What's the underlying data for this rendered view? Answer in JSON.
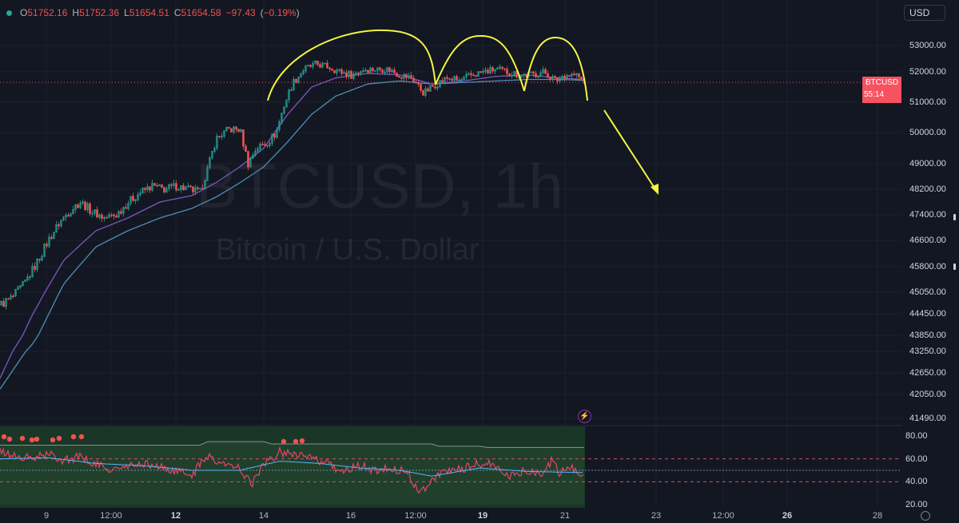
{
  "header": {
    "open_label": "O",
    "open": "51752.16",
    "high_label": "H",
    "high": "51752.36",
    "low_label": "L",
    "low": "51654.51",
    "close_label": "C",
    "close": "51654.58",
    "change": "−97.43",
    "change_pct": "−0.19%",
    "currency": "USD"
  },
  "watermark": {
    "title": "BTCUSD, 1h",
    "subtitle": "Bitcoin / U.S. Dollar"
  },
  "price_tag": {
    "symbol": "BTCUSD",
    "price": "51654.58",
    "countdown": "55:14"
  },
  "colors": {
    "background": "#131722",
    "up": "#26a69a",
    "down": "#ef5350",
    "ema_fast": "#7e57c2",
    "ema_slow": "#4a90b8",
    "annotation": "#f5f542",
    "rsi_fill": "#1f4d2e",
    "rsi_ma": "#5ab4ff"
  },
  "icons": {
    "alert": "lightning-icon",
    "settings": "gear-icon"
  },
  "chart_data": [
    {
      "type": "candlestick",
      "symbol": "BTCUSD",
      "timeframe": "1h",
      "y_ticks": [
        53000,
        52000,
        51000,
        50000,
        49000,
        48200,
        47400,
        46600,
        45800,
        45050,
        44450,
        43850,
        43250,
        42650,
        42050,
        41490
      ],
      "y_tick_labels": [
        "53000.00",
        "52000.00",
        "51000.00",
        "50000.00",
        "49000.00",
        "48200.00",
        "47400.00",
        "46600.00",
        "45800.00",
        "45050.00",
        "44450.00",
        "43850.00",
        "43250.00",
        "42650.00",
        "42050.00",
        "41490.00"
      ],
      "x_tick_labels": [
        "9",
        "12:00",
        "12",
        "14",
        "16",
        "12:00",
        "19",
        "21",
        "23",
        "12:00",
        "26",
        "28"
      ],
      "x_bold_ticks": [
        "12",
        "19",
        "26"
      ],
      "last_price": 51654.58,
      "series": [
        {
          "kind": "price",
          "points": [
            [
              0,
              44700
            ],
            [
              15,
              44900
            ],
            [
              30,
              45300
            ],
            [
              45,
              45900
            ],
            [
              60,
              46600
            ],
            [
              75,
              47200
            ],
            [
              90,
              47600
            ],
            [
              100,
              47800
            ],
            [
              115,
              47500
            ],
            [
              130,
              47300
            ],
            [
              145,
              47400
            ],
            [
              160,
              47800
            ],
            [
              175,
              48100
            ],
            [
              190,
              48300
            ],
            [
              205,
              48200
            ],
            [
              220,
              48300
            ],
            [
              235,
              48200
            ],
            [
              250,
              48100
            ],
            [
              260,
              48900
            ],
            [
              270,
              49800
            ],
            [
              285,
              50100
            ],
            [
              300,
              50100
            ],
            [
              310,
              49000
            ],
            [
              320,
              49500
            ],
            [
              335,
              49700
            ],
            [
              345,
              50000
            ],
            [
              355,
              50900
            ],
            [
              365,
              51600
            ],
            [
              380,
              52100
            ],
            [
              395,
              52300
            ],
            [
              410,
              52200
            ],
            [
              425,
              52000
            ],
            [
              440,
              51900
            ],
            [
              455,
              52100
            ],
            [
              470,
              52100
            ],
            [
              485,
              52100
            ],
            [
              500,
              51900
            ],
            [
              515,
              51800
            ],
            [
              530,
              51300
            ],
            [
              545,
              51600
            ],
            [
              560,
              51800
            ],
            [
              575,
              51700
            ],
            [
              590,
              51900
            ],
            [
              605,
              52000
            ],
            [
              620,
              52100
            ],
            [
              635,
              52000
            ],
            [
              650,
              51900
            ],
            [
              665,
              51900
            ],
            [
              680,
              52000
            ],
            [
              695,
              51700
            ],
            [
              705,
              51900
            ],
            [
              720,
              51900
            ],
            [
              731,
              51655
            ]
          ]
        },
        {
          "kind": "ema_fast",
          "points": [
            [
              0,
              42500
            ],
            [
              40,
              44400
            ],
            [
              80,
              46000
            ],
            [
              120,
              46900
            ],
            [
              160,
              47300
            ],
            [
              200,
              47800
            ],
            [
              240,
              48000
            ],
            [
              270,
              48400
            ],
            [
              300,
              48900
            ],
            [
              330,
              49500
            ],
            [
              360,
              50600
            ],
            [
              390,
              51500
            ],
            [
              420,
              51800
            ],
            [
              460,
              51950
            ],
            [
              500,
              51900
            ],
            [
              540,
              51600
            ],
            [
              580,
              51700
            ],
            [
              620,
              51850
            ],
            [
              660,
              51900
            ],
            [
              700,
              51800
            ],
            [
              731,
              51750
            ]
          ]
        },
        {
          "kind": "ema_slow",
          "points": [
            [
              0,
              42200
            ],
            [
              40,
              43500
            ],
            [
              80,
              45300
            ],
            [
              120,
              46400
            ],
            [
              160,
              46900
            ],
            [
              200,
              47300
            ],
            [
              240,
              47600
            ],
            [
              270,
              47950
            ],
            [
              300,
              48400
            ],
            [
              330,
              48900
            ],
            [
              360,
              49700
            ],
            [
              390,
              50600
            ],
            [
              420,
              51200
            ],
            [
              460,
              51600
            ],
            [
              500,
              51700
            ],
            [
              540,
              51600
            ],
            [
              580,
              51650
            ],
            [
              620,
              51700
            ],
            [
              660,
              51750
            ],
            [
              700,
              51750
            ],
            [
              731,
              51720
            ]
          ]
        }
      ]
    },
    {
      "type": "line",
      "indicator": "RSI",
      "y_ticks": [
        80,
        60,
        40,
        20
      ],
      "y_tick_labels": [
        "80.00",
        "60.00",
        "40.00",
        "20.00"
      ],
      "bands": {
        "upper": 60,
        "middle": 50,
        "lower": 40
      },
      "series": [
        {
          "kind": "rsi",
          "points": [
            [
              0,
              66
            ],
            [
              20,
              62
            ],
            [
              40,
              60
            ],
            [
              60,
              64
            ],
            [
              80,
              59
            ],
            [
              100,
              62
            ],
            [
              120,
              55
            ],
            [
              140,
              50
            ],
            [
              160,
              53
            ],
            [
              180,
              56
            ],
            [
              200,
              53
            ],
            [
              220,
              49
            ],
            [
              240,
              46
            ],
            [
              260,
              63
            ],
            [
              280,
              55
            ],
            [
              300,
              52
            ],
            [
              315,
              38
            ],
            [
              330,
              55
            ],
            [
              350,
              66
            ],
            [
              370,
              65
            ],
            [
              390,
              60
            ],
            [
              410,
              55
            ],
            [
              430,
              49
            ],
            [
              450,
              54
            ],
            [
              470,
              50
            ],
            [
              490,
              52
            ],
            [
              510,
              48
            ],
            [
              525,
              30
            ],
            [
              540,
              42
            ],
            [
              560,
              50
            ],
            [
              580,
              52
            ],
            [
              600,
              56
            ],
            [
              620,
              54
            ],
            [
              640,
              45
            ],
            [
              660,
              50
            ],
            [
              680,
              48
            ],
            [
              690,
              58
            ],
            [
              700,
              48
            ],
            [
              715,
              52
            ],
            [
              731,
              44
            ]
          ]
        },
        {
          "kind": "rsi_ma",
          "points": [
            [
              0,
              60
            ],
            [
              60,
              61
            ],
            [
              120,
              56
            ],
            [
              180,
              54
            ],
            [
              240,
              50
            ],
            [
              300,
              50
            ],
            [
              350,
              58
            ],
            [
              400,
              56
            ],
            [
              450,
              52
            ],
            [
              500,
              50
            ],
            [
              540,
              45
            ],
            [
              600,
              52
            ],
            [
              660,
              49
            ],
            [
              731,
              48
            ]
          ]
        },
        {
          "kind": "rsi_upper_envelope",
          "points": [
            [
              0,
              72
            ],
            [
              250,
              72
            ],
            [
              260,
              75
            ],
            [
              330,
              75
            ],
            [
              340,
              73
            ],
            [
              540,
              73
            ],
            [
              550,
              71
            ],
            [
              600,
              71
            ],
            [
              610,
              70
            ],
            [
              731,
              70
            ]
          ]
        }
      ]
    }
  ]
}
